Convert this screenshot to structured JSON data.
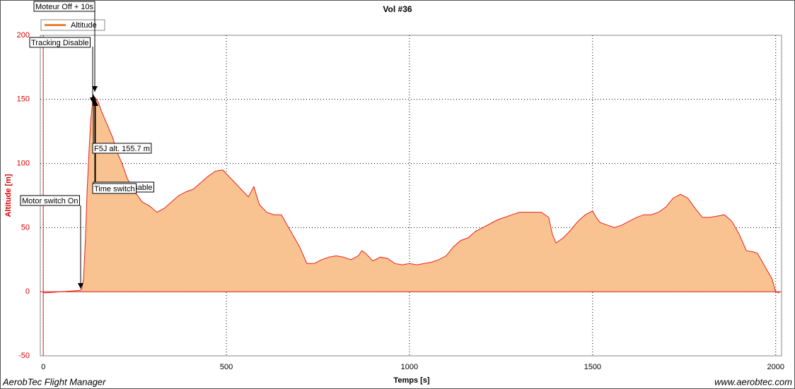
{
  "chart_data": {
    "type": "area",
    "title": "Vol #36",
    "x_label": "Temps [s]",
    "y_label": "Altitude [m]",
    "footer_left": "AerobTec Flight Manager",
    "footer_right": "www.aerobtec.com",
    "legend": "top-left",
    "grid": true,
    "xlim": [
      -8,
      2016
    ],
    "xticks": [
      0,
      500,
      1000,
      1500,
      2000
    ],
    "ylim": [
      -50,
      200
    ],
    "yticks": [
      -50,
      0,
      50,
      100,
      150,
      200
    ],
    "x": [
      0,
      50,
      100,
      105,
      110,
      115,
      120,
      125,
      130,
      135,
      140,
      150,
      160,
      175,
      190,
      200,
      215,
      230,
      250,
      270,
      290,
      310,
      330,
      350,
      370,
      390,
      410,
      430,
      450,
      470,
      490,
      500,
      520,
      540,
      560,
      575,
      590,
      610,
      630,
      650,
      660,
      680,
      700,
      720,
      740,
      760,
      780,
      800,
      820,
      840,
      860,
      870,
      880,
      900,
      920,
      940,
      960,
      980,
      1000,
      1020,
      1040,
      1060,
      1080,
      1100,
      1120,
      1140,
      1160,
      1180,
      1200,
      1220,
      1240,
      1260,
      1280,
      1300,
      1320,
      1340,
      1360,
      1380,
      1390,
      1400,
      1420,
      1440,
      1460,
      1480,
      1500,
      1510,
      1520,
      1540,
      1560,
      1580,
      1600,
      1620,
      1640,
      1660,
      1680,
      1700,
      1720,
      1740,
      1760,
      1780,
      1800,
      1820,
      1840,
      1860,
      1880,
      1900,
      1920,
      1940,
      1950,
      1960,
      1980,
      1990,
      2000,
      2010
    ],
    "series": [
      {
        "name": "Altitude",
        "color": "#e8201c",
        "fill": "#f9c391",
        "values": [
          -1,
          0,
          1,
          2,
          10,
          40,
          80,
          110,
          135,
          148,
          152,
          148,
          140,
          130,
          120,
          110,
          100,
          88,
          78,
          70,
          67,
          62,
          65,
          70,
          75,
          78,
          80,
          85,
          90,
          94,
          95,
          92,
          86,
          80,
          74,
          82,
          68,
          62,
          60,
          60,
          55,
          45,
          35,
          22,
          22,
          25,
          27,
          28,
          27,
          25,
          28,
          32,
          30,
          24,
          27,
          26,
          22,
          21,
          22,
          21,
          22,
          23,
          25,
          28,
          35,
          40,
          42,
          47,
          50,
          53,
          56,
          58,
          60,
          62,
          62,
          62,
          62,
          58,
          45,
          38,
          42,
          48,
          55,
          60,
          63,
          58,
          54,
          52,
          50,
          52,
          55,
          58,
          60,
          60,
          62,
          66,
          73,
          76,
          73,
          65,
          58,
          58,
          59,
          60,
          55,
          45,
          32,
          31,
          30,
          25,
          15,
          10,
          0,
          -1
        ]
      }
    ],
    "annotations": [
      {
        "text": "Moteur Off + 10s",
        "x": 142
      },
      {
        "text": "Tracking Disable",
        "x": 135
      },
      {
        "text": "F5J alt. 155.7 m",
        "x": 136
      },
      {
        "text": "Tracking Disable",
        "x": 138
      },
      {
        "text": "Time switch",
        "x": 138
      },
      {
        "text": "Motor switch On",
        "x": 105
      }
    ]
  }
}
